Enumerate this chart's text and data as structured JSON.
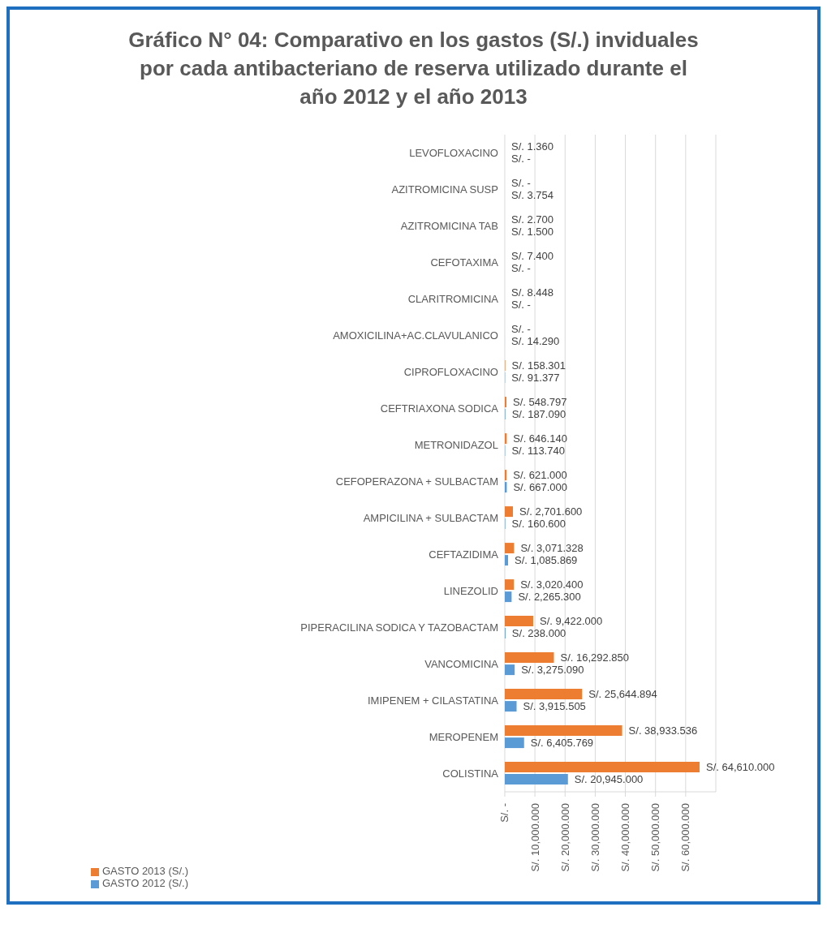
{
  "chart_data": {
    "type": "bar",
    "orientation": "horizontal",
    "title": "Gráfico N° 04: Comparativo en los gastos (S/.) inviduales por cada antibacteriano de reserva utilizado durante el año 2012 y el año 2013",
    "categories": [
      "LEVOFLOXACINO",
      "AZITROMICINA SUSP",
      "AZITROMICINA TAB",
      "CEFOTAXIMA",
      "CLARITROMICINA",
      "AMOXICILINA+AC.CLAVULANICO",
      "CIPROFLOXACINO",
      "CEFTRIAXONA SODICA",
      "METRONIDAZOL",
      "CEFOPERAZONA + SULBACTAM",
      "AMPICILINA + SULBACTAM",
      "CEFTAZIDIMA",
      "LINEZOLID",
      "PIPERACILINA SODICA Y TAZOBACTAM",
      "VANCOMICINA",
      "IMIPENEM + CILASTATINA",
      "MEROPENEM",
      "COLISTINA"
    ],
    "series": [
      {
        "name": "GASTO 2013 (S/.)",
        "color": "#ed7d31",
        "values": [
          1.36,
          0,
          2.7,
          7.4,
          8.448,
          0,
          158.301,
          548.797,
          646.14,
          621,
          2701.6,
          3071.328,
          3020.4,
          9422,
          16292.85,
          25644.894,
          38933.536,
          64610
        ],
        "value_labels": [
          "S/. 1.360",
          "S/. -",
          "S/. 2.700",
          "S/. 7.400",
          "S/. 8.448",
          "S/. -",
          "S/. 158.301",
          "S/. 548.797",
          "S/. 646.140",
          "S/. 621.000",
          "S/. 2,701.600",
          "S/. 3,071.328",
          "S/. 3,020.400",
          "S/. 9,422.000",
          "S/. 16,292.850",
          "S/. 25,644.894",
          "S/. 38,933.536",
          "S/. 64,610.000"
        ]
      },
      {
        "name": "GASTO 2012 (S/.)",
        "color": "#5b9bd5",
        "values": [
          0,
          3.754,
          1.5,
          0,
          0,
          14.29,
          91.377,
          187.09,
          113.74,
          667,
          160.6,
          1085.869,
          2265.3,
          238,
          3275.09,
          3915.505,
          6405.769,
          20945
        ],
        "value_labels": [
          "S/. -",
          "S/. 3.754",
          "S/. 1.500",
          "S/. -",
          "S/. -",
          "S/. 14.290",
          "S/. 91.377",
          "S/. 187.090",
          "S/. 113.740",
          "S/. 667.000",
          "S/. 160.600",
          "S/. 1,085.869",
          "S/. 2,265.300",
          "S/. 238.000",
          "S/. 3,275.090",
          "S/. 3,915.505",
          "S/. 6,405.769",
          "S/. 20,945.000"
        ]
      }
    ],
    "xlim": [
      0,
      70000
    ],
    "xticks": [
      {
        "value": 0,
        "label": "S/. -"
      },
      {
        "value": 10000,
        "label": "S/. 10,000.000"
      },
      {
        "value": 20000,
        "label": "S/. 20,000.000"
      },
      {
        "value": 30000,
        "label": "S/. 30,000.000"
      },
      {
        "value": 40000,
        "label": "S/. 40,000.000"
      },
      {
        "value": 50000,
        "label": "S/. 50,000.000"
      },
      {
        "value": 60000,
        "label": "S/. 60,000.000"
      }
    ],
    "grid": "x",
    "legend": "bottom left"
  }
}
